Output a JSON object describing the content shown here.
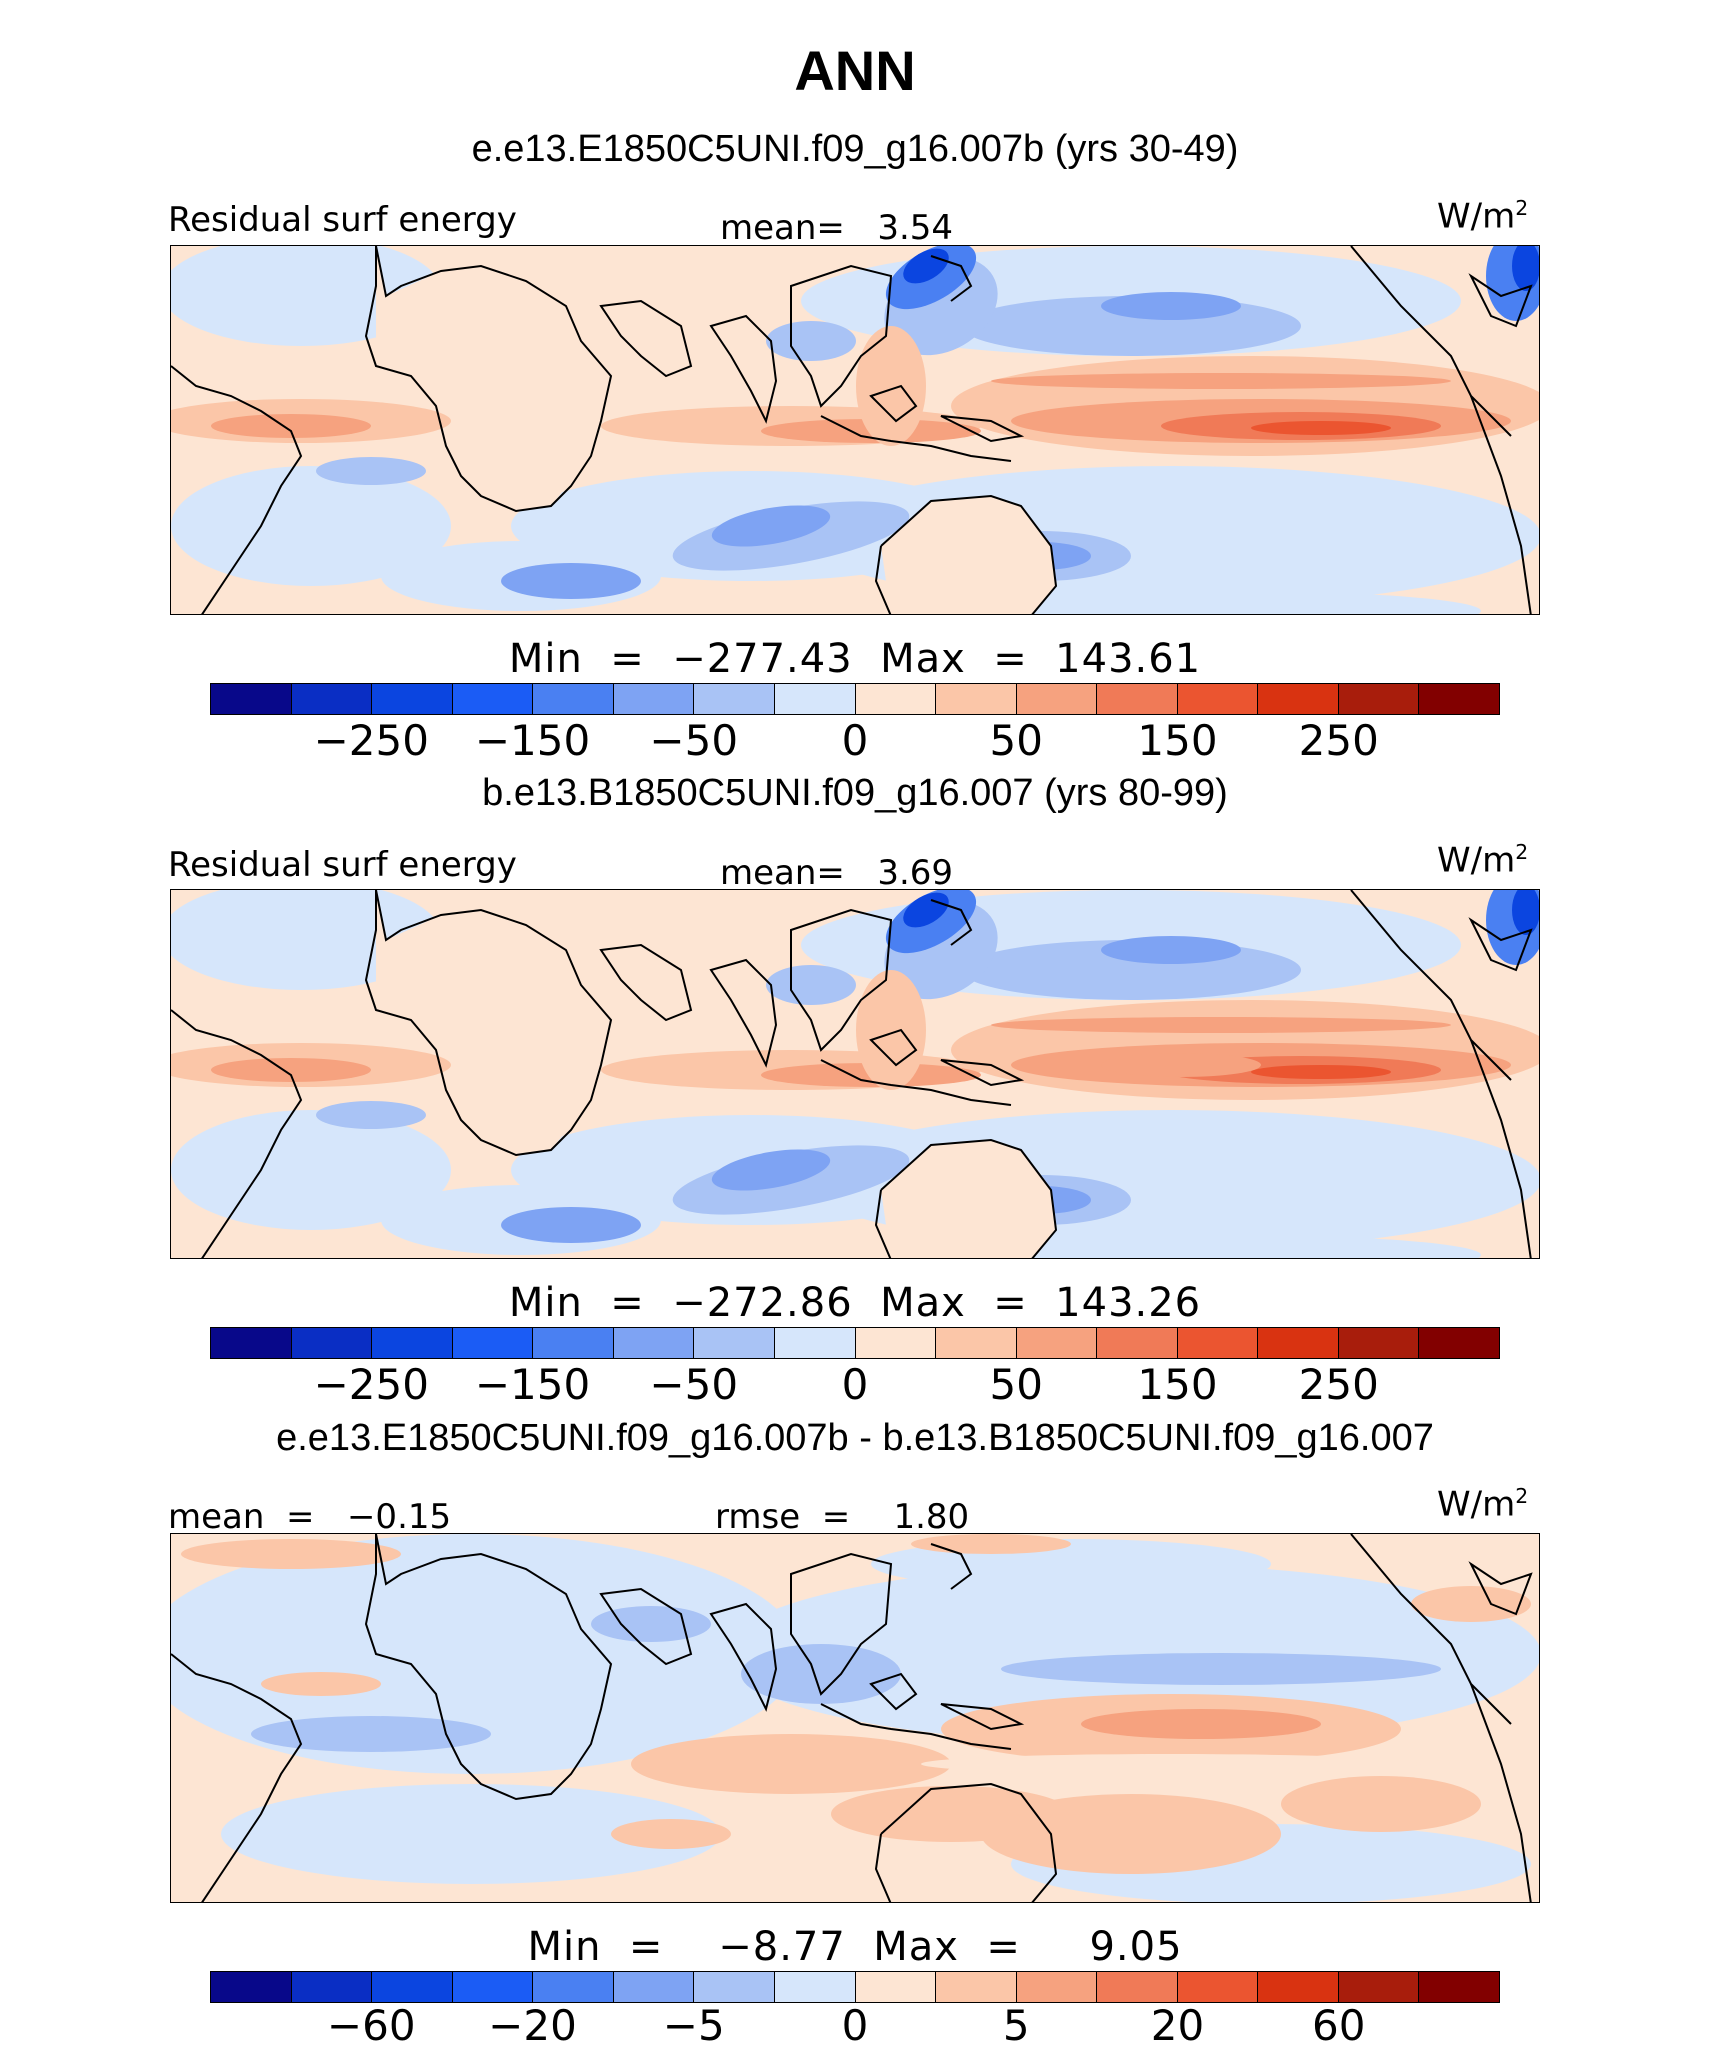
{
  "title": "ANN",
  "unit_base": "W/m",
  "unit_exp": "2",
  "colors": [
    "#08088a",
    "#0a2ec4",
    "#0b45e0",
    "#1b5cf5",
    "#4a80f2",
    "#7ea3f3",
    "#a9c3f5",
    "#d6e6fb",
    "#fde5d3",
    "#fbc6a8",
    "#f6a27f",
    "#f07a57",
    "#eb5530",
    "#d93311",
    "#a81d0c",
    "#820000"
  ],
  "panels": [
    {
      "case": "e.e13.E1850C5UNI.f09_g16.007b (yrs 30-49)",
      "left_label": "Residual surf energy",
      "mean_label": "mean=   3.54",
      "stats": "Min  =  −277.43  Max  =  143.61",
      "ticks": [
        "−250",
        "−150",
        "−50",
        "0",
        "50",
        "150",
        "250"
      ]
    },
    {
      "case": "b.e13.B1850C5UNI.f09_g16.007 (yrs 80-99)",
      "left_label": "Residual surf energy",
      "mean_label": "mean=   3.69",
      "stats": "Min  =  −272.86  Max  =  143.26",
      "ticks": [
        "−250",
        "−150",
        "−50",
        "0",
        "50",
        "150",
        "250"
      ]
    },
    {
      "case": "e.e13.E1850C5UNI.f09_g16.007b - b.e13.B1850C5UNI.f09_g16.007",
      "left_label": "mean  =   −0.15",
      "mean_label": "rmse  =    1.80",
      "stats": "Min  =    −8.77  Max  =     9.05",
      "ticks": [
        "−60",
        "−20",
        "−5",
        "0",
        "5",
        "20",
        "60"
      ]
    }
  ]
}
